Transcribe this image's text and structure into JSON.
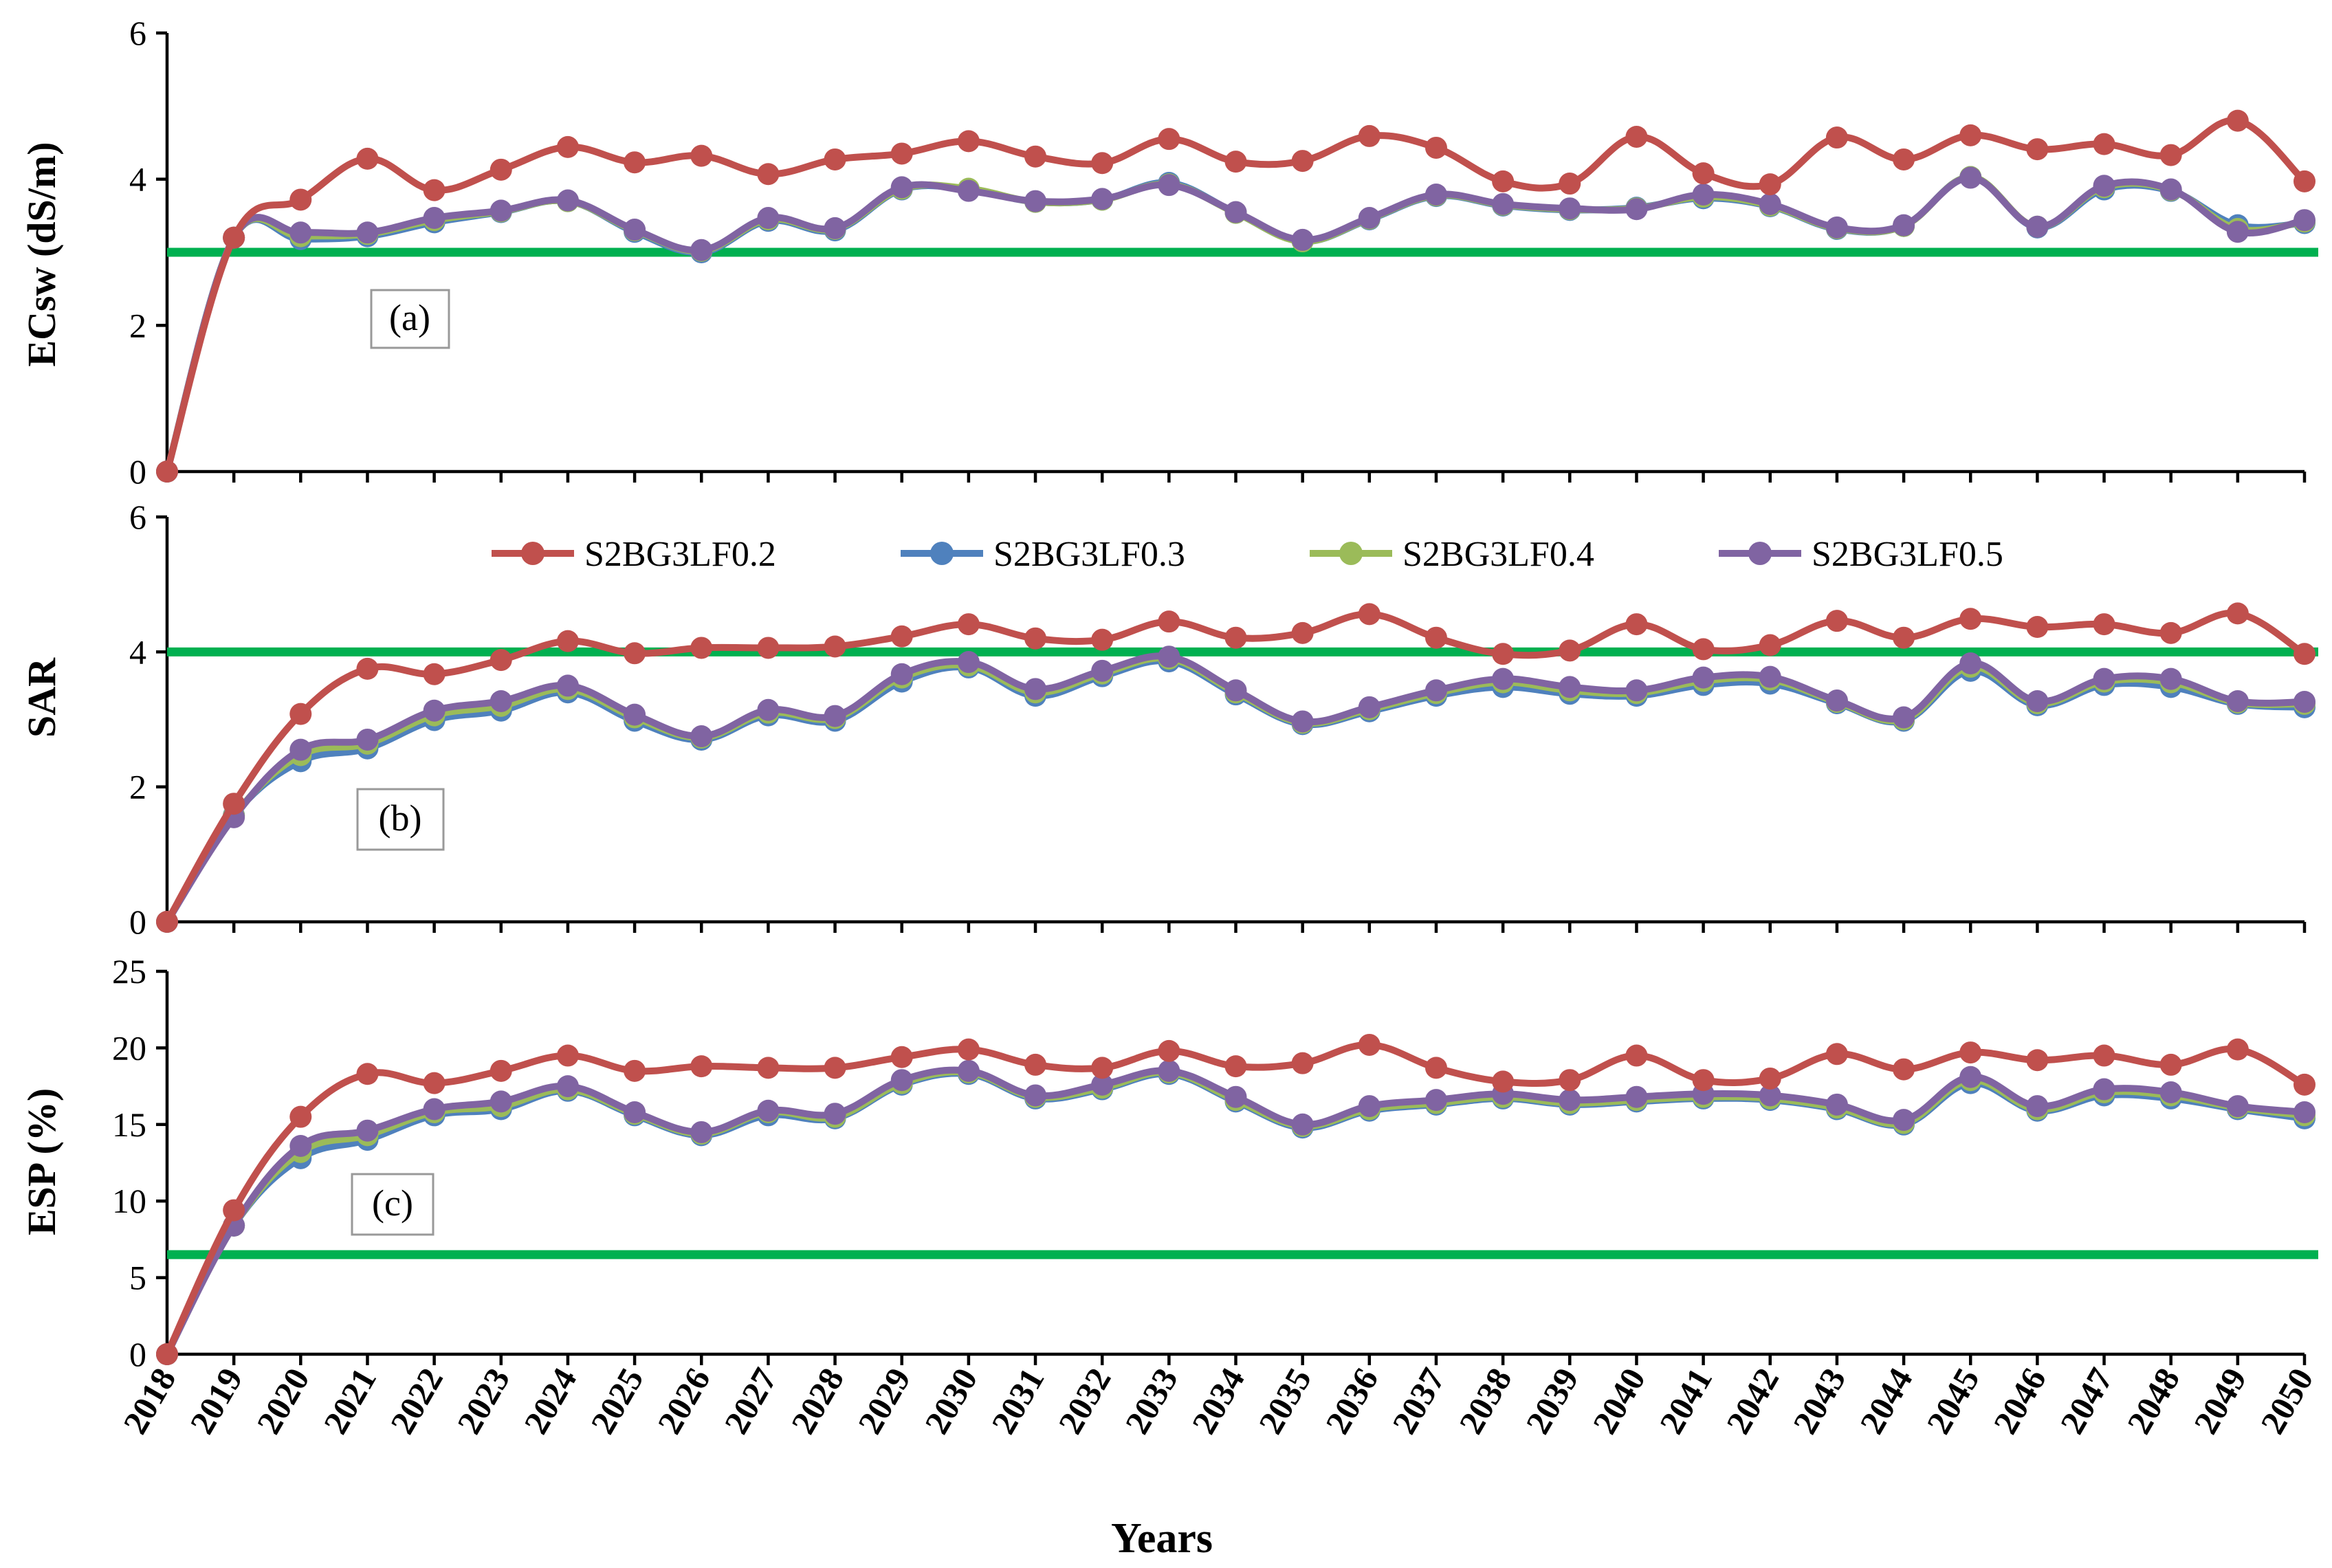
{
  "chart_data": {
    "type": "line",
    "x_title": "Years",
    "years": [
      2018,
      2019,
      2020,
      2021,
      2022,
      2023,
      2024,
      2025,
      2026,
      2027,
      2028,
      2029,
      2030,
      2031,
      2032,
      2033,
      2034,
      2035,
      2036,
      2037,
      2038,
      2039,
      2040,
      2041,
      2042,
      2043,
      2044,
      2045,
      2046,
      2047,
      2048,
      2049,
      2050
    ],
    "legend": [
      "S2BG3LF0.2",
      "S2BG3LF0.3",
      "S2BG3LF0.4",
      "S2BG3LF0.5"
    ],
    "series_colors": [
      "#C0504D",
      "#4F81BD",
      "#9BBB59",
      "#8064A2"
    ],
    "threshold_color": "#00B050",
    "panels": [
      {
        "ylabel": "ECsw (dS/m)",
        "panel_label": "(a)",
        "ylim": [
          0,
          6
        ],
        "yticks": [
          0,
          2,
          4,
          6
        ],
        "threshold": 3.0,
        "series": [
          {
            "name": "S2BG3LF0.2",
            "values": [
              0,
              3.2,
              3.72,
              4.28,
              3.85,
              4.13,
              4.44,
              4.23,
              4.32,
              4.07,
              4.27,
              4.35,
              4.52,
              4.31,
              4.22,
              4.55,
              4.24,
              4.25,
              4.59,
              4.43,
              3.97,
              3.94,
              4.58,
              4.08,
              3.93,
              4.57,
              4.27,
              4.6,
              4.41,
              4.48,
              4.33,
              4.8,
              3.97
            ]
          },
          {
            "name": "S2BG3LF0.3",
            "values": [
              0,
              3.2,
              3.18,
              3.22,
              3.41,
              3.55,
              3.7,
              3.28,
              3.0,
              3.43,
              3.3,
              3.86,
              3.86,
              3.69,
              3.72,
              3.95,
              3.54,
              3.15,
              3.45,
              3.77,
              3.64,
              3.58,
              3.61,
              3.74,
              3.63,
              3.32,
              3.36,
              4.03,
              3.34,
              3.86,
              3.84,
              3.37,
              3.4
            ]
          },
          {
            "name": "S2BG3LF0.4",
            "values": [
              0,
              3.2,
              3.22,
              3.25,
              3.44,
              3.56,
              3.7,
              3.3,
              3.02,
              3.45,
              3.32,
              3.87,
              3.87,
              3.69,
              3.72,
              3.93,
              3.54,
              3.15,
              3.46,
              3.78,
              3.65,
              3.59,
              3.6,
              3.76,
              3.64,
              3.33,
              3.36,
              4.03,
              3.35,
              3.89,
              3.85,
              3.32,
              3.42
            ]
          },
          {
            "name": "S2BG3LF0.5",
            "values": [
              0,
              3.2,
              3.27,
              3.27,
              3.47,
              3.57,
              3.71,
              3.31,
              3.03,
              3.47,
              3.33,
              3.89,
              3.84,
              3.7,
              3.73,
              3.92,
              3.55,
              3.17,
              3.47,
              3.79,
              3.66,
              3.6,
              3.59,
              3.79,
              3.66,
              3.34,
              3.37,
              4.02,
              3.35,
              3.91,
              3.86,
              3.28,
              3.44
            ]
          }
        ]
      },
      {
        "ylabel": "SAR",
        "panel_label": "(b)",
        "ylim": [
          0,
          6
        ],
        "yticks": [
          0,
          2,
          4,
          6
        ],
        "threshold": 4.0,
        "series": [
          {
            "name": "S2BG3LF0.2",
            "values": [
              0,
              1.75,
              3.08,
              3.75,
              3.67,
              3.88,
              4.16,
              3.98,
              4.06,
              4.06,
              4.08,
              4.23,
              4.41,
              4.2,
              4.18,
              4.45,
              4.21,
              4.28,
              4.56,
              4.21,
              3.97,
              4.02,
              4.41,
              4.04,
              4.1,
              4.46,
              4.21,
              4.49,
              4.37,
              4.41,
              4.28,
              4.57,
              3.97
            ]
          },
          {
            "name": "S2BG3LF0.3",
            "values": [
              0,
              1.58,
              2.38,
              2.57,
              2.99,
              3.13,
              3.4,
              2.98,
              2.7,
              3.06,
              2.98,
              3.56,
              3.77,
              3.35,
              3.64,
              3.86,
              3.37,
              2.93,
              3.12,
              3.35,
              3.48,
              3.38,
              3.35,
              3.51,
              3.53,
              3.24,
              2.98,
              3.72,
              3.21,
              3.51,
              3.48,
              3.23,
              3.18
            ]
          },
          {
            "name": "S2BG3LF0.4",
            "values": [
              0,
              1.57,
              2.47,
              2.64,
              3.06,
              3.2,
              3.45,
              3.03,
              2.73,
              3.1,
              3.02,
              3.62,
              3.8,
              3.4,
              3.68,
              3.9,
              3.4,
              2.95,
              3.15,
              3.39,
              3.55,
              3.43,
              3.39,
              3.57,
              3.59,
              3.26,
              3.0,
              3.78,
              3.24,
              3.56,
              3.55,
              3.25,
              3.23
            ]
          },
          {
            "name": "S2BG3LF0.5",
            "values": [
              0,
              1.55,
              2.55,
              2.7,
              3.13,
              3.27,
              3.5,
              3.07,
              2.75,
              3.14,
              3.05,
              3.67,
              3.85,
              3.45,
              3.72,
              3.93,
              3.43,
              2.97,
              3.18,
              3.43,
              3.6,
              3.48,
              3.43,
              3.62,
              3.63,
              3.28,
              3.03,
              3.83,
              3.27,
              3.6,
              3.6,
              3.27,
              3.26
            ]
          }
        ]
      },
      {
        "ylabel": "ESP (%)",
        "panel_label": "(c)",
        "ylim": [
          0,
          25
        ],
        "yticks": [
          0,
          5,
          10,
          15,
          20,
          25
        ],
        "threshold": 6.5,
        "series": [
          {
            "name": "S2BG3LF0.2",
            "values": [
              0,
              9.4,
              15.5,
              18.3,
              17.7,
              18.5,
              19.5,
              18.5,
              18.8,
              18.7,
              18.7,
              19.4,
              19.9,
              18.9,
              18.7,
              19.8,
              18.8,
              19.0,
              20.2,
              18.7,
              17.8,
              17.9,
              19.5,
              17.9,
              18.0,
              19.6,
              18.6,
              19.7,
              19.2,
              19.5,
              18.9,
              19.9,
              17.6
            ]
          },
          {
            "name": "S2BG3LF0.3",
            "values": [
              0,
              8.4,
              12.8,
              14.0,
              15.6,
              16.0,
              17.2,
              15.6,
              14.3,
              15.6,
              15.4,
              17.6,
              18.3,
              16.7,
              17.3,
              18.3,
              16.5,
              14.8,
              15.9,
              16.3,
              16.7,
              16.3,
              16.5,
              16.7,
              16.6,
              16.0,
              15.0,
              17.7,
              15.9,
              16.9,
              16.7,
              16.0,
              15.4
            ]
          },
          {
            "name": "S2BG3LF0.4",
            "values": [
              0,
              8.4,
              13.2,
              14.3,
              15.8,
              16.2,
              17.3,
              15.7,
              14.4,
              15.8,
              15.5,
              17.7,
              18.4,
              16.8,
              17.4,
              18.4,
              16.6,
              14.9,
              16.0,
              16.4,
              16.8,
              16.4,
              16.6,
              16.8,
              16.7,
              16.1,
              15.1,
              17.9,
              16.0,
              17.1,
              16.9,
              16.1,
              15.6
            ]
          },
          {
            "name": "S2BG3LF0.5",
            "values": [
              0,
              8.4,
              13.6,
              14.6,
              16.0,
              16.5,
              17.5,
              15.8,
              14.5,
              15.9,
              15.7,
              17.9,
              18.5,
              16.9,
              17.6,
              18.5,
              16.8,
              15.0,
              16.2,
              16.6,
              17.0,
              16.6,
              16.8,
              17.0,
              16.9,
              16.3,
              15.3,
              18.1,
              16.2,
              17.3,
              17.1,
              16.2,
              15.8
            ]
          }
        ]
      }
    ]
  }
}
